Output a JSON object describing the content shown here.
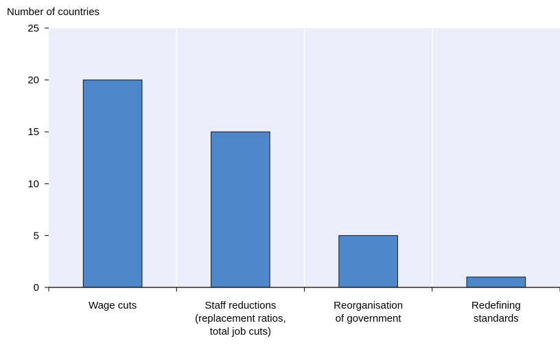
{
  "chart_data": {
    "type": "bar",
    "ylabel": "Number of countries",
    "categories": [
      [
        "Wage cuts"
      ],
      [
        "Staff reductions",
        "(replacement ratios,",
        "total job cuts)"
      ],
      [
        "Reorganisation",
        "of government"
      ],
      [
        "Redefining",
        "standards"
      ]
    ],
    "values": [
      20,
      15,
      5,
      1
    ],
    "ylim": [
      0,
      25
    ],
    "yticks": [
      0,
      5,
      10,
      15,
      20,
      25
    ],
    "grid": "vertical category separators",
    "colors": {
      "plot_background": "#e9eef8",
      "bar_fill": "#4e86c8",
      "bar_stroke": "#1a1a1a",
      "grid": "#ffffff",
      "axis": "#000000"
    }
  }
}
